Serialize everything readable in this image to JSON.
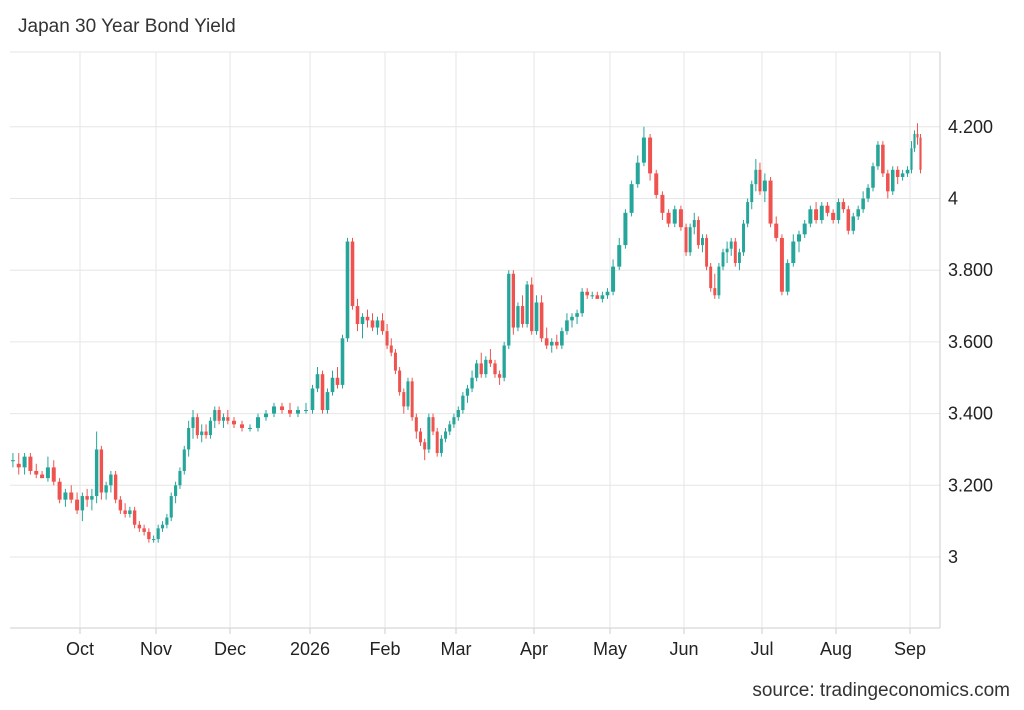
{
  "title": "Japan 30 Year Bond Yield",
  "source": "source: tradingeconomics.com",
  "colors": {
    "up": "#26a69a",
    "down": "#ef5350",
    "grid": "#e6e6e6"
  },
  "chart_data": {
    "type": "candlestick",
    "title": "Japan 30 Year Bond Yield",
    "x_labels": [
      "Oct",
      "Nov",
      "Dec",
      "2026",
      "Feb",
      "Mar",
      "Apr",
      "May",
      "Jun",
      "Jul",
      "Aug",
      "Sep"
    ],
    "y_ticks": [
      "3",
      "3.200",
      "3.400",
      "3.600",
      "3.800",
      "4",
      "4.200"
    ],
    "ylim": [
      2.8,
      4.38
    ],
    "grid": true,
    "legend": "none",
    "note": "Daily candles; each entry is [open, high, low, close] in percent.",
    "segments": [
      {
        "month": "Sep",
        "ohlc": [
          [
            3.27,
            3.29,
            3.25,
            3.27
          ],
          [
            3.26,
            3.29,
            3.23,
            3.25
          ],
          [
            3.25,
            3.29,
            3.23,
            3.28
          ],
          [
            3.28,
            3.29,
            3.23,
            3.24
          ],
          [
            3.24,
            3.26,
            3.22,
            3.23
          ],
          [
            3.23,
            3.24,
            3.22,
            3.22
          ],
          [
            3.22,
            3.28,
            3.21,
            3.25
          ],
          [
            3.25,
            3.27,
            3.2,
            3.21
          ],
          [
            3.21,
            3.22,
            3.15,
            3.16
          ],
          [
            3.16,
            3.19,
            3.14,
            3.18
          ],
          [
            3.18,
            3.2,
            3.15,
            3.16
          ],
          [
            3.16,
            3.18,
            3.12,
            3.13
          ]
        ]
      },
      {
        "month": "Oct",
        "ohlc": [
          [
            3.13,
            3.18,
            3.1,
            3.17
          ],
          [
            3.17,
            3.19,
            3.14,
            3.16
          ],
          [
            3.16,
            3.19,
            3.13,
            3.17
          ],
          [
            3.17,
            3.35,
            3.15,
            3.3
          ],
          [
            3.3,
            3.31,
            3.16,
            3.18
          ],
          [
            3.18,
            3.21,
            3.16,
            3.2
          ],
          [
            3.2,
            3.24,
            3.18,
            3.23
          ],
          [
            3.23,
            3.24,
            3.15,
            3.16
          ],
          [
            3.16,
            3.17,
            3.12,
            3.13
          ],
          [
            3.13,
            3.15,
            3.11,
            3.12
          ],
          [
            3.12,
            3.14,
            3.11,
            3.13
          ],
          [
            3.13,
            3.14,
            3.08,
            3.09
          ],
          [
            3.09,
            3.1,
            3.07,
            3.08
          ],
          [
            3.08,
            3.09,
            3.06,
            3.07
          ],
          [
            3.07,
            3.08,
            3.04,
            3.05
          ],
          [
            3.05,
            3.06,
            3.04,
            3.05
          ]
        ]
      },
      {
        "month": "Nov",
        "ohlc": [
          [
            3.05,
            3.09,
            3.04,
            3.08
          ],
          [
            3.08,
            3.1,
            3.07,
            3.09
          ],
          [
            3.09,
            3.12,
            3.08,
            3.11
          ],
          [
            3.11,
            3.18,
            3.1,
            3.17
          ],
          [
            3.17,
            3.21,
            3.15,
            3.2
          ],
          [
            3.2,
            3.25,
            3.19,
            3.24
          ],
          [
            3.24,
            3.31,
            3.23,
            3.3
          ],
          [
            3.3,
            3.38,
            3.28,
            3.36
          ],
          [
            3.36,
            3.41,
            3.33,
            3.39
          ],
          [
            3.39,
            3.4,
            3.33,
            3.34
          ],
          [
            3.34,
            3.37,
            3.32,
            3.35
          ],
          [
            3.35,
            3.37,
            3.33,
            3.34
          ],
          [
            3.34,
            3.39,
            3.33,
            3.38
          ],
          [
            3.38,
            3.42,
            3.36,
            3.41
          ],
          [
            3.41,
            3.42,
            3.37,
            3.38
          ],
          [
            3.38,
            3.4,
            3.36,
            3.39
          ],
          [
            3.39,
            3.41,
            3.37,
            3.38
          ]
        ]
      },
      {
        "month": "Dec",
        "ohlc": [
          [
            3.38,
            3.39,
            3.36,
            3.37
          ],
          [
            3.37,
            3.38,
            3.35,
            3.36
          ],
          [
            3.36,
            3.37,
            3.35,
            3.36
          ],
          [
            3.36,
            3.4,
            3.35,
            3.39
          ],
          [
            3.39,
            3.41,
            3.38,
            3.4
          ],
          [
            3.4,
            3.43,
            3.39,
            3.42
          ],
          [
            3.42,
            3.43,
            3.4,
            3.41
          ],
          [
            3.41,
            3.43,
            3.39,
            3.4
          ],
          [
            3.4,
            3.42,
            3.39,
            3.41
          ],
          [
            3.41,
            3.43,
            3.4,
            3.41
          ]
        ]
      },
      {
        "month": "2026",
        "ohlc": [
          [
            3.41,
            3.48,
            3.4,
            3.47
          ],
          [
            3.47,
            3.53,
            3.46,
            3.51
          ],
          [
            3.51,
            3.52,
            3.4,
            3.41
          ],
          [
            3.41,
            3.47,
            3.4,
            3.46
          ],
          [
            3.46,
            3.52,
            3.45,
            3.5
          ],
          [
            3.5,
            3.53,
            3.47,
            3.48
          ],
          [
            3.48,
            3.62,
            3.47,
            3.61
          ],
          [
            3.61,
            3.89,
            3.6,
            3.88
          ],
          [
            3.88,
            3.89,
            3.69,
            3.7
          ],
          [
            3.7,
            3.72,
            3.63,
            3.65
          ],
          [
            3.65,
            3.68,
            3.61,
            3.67
          ],
          [
            3.67,
            3.69,
            3.64,
            3.66
          ],
          [
            3.66,
            3.68,
            3.63,
            3.64
          ],
          [
            3.64,
            3.67,
            3.62,
            3.66
          ],
          [
            3.66,
            3.68,
            3.62,
            3.63
          ]
        ]
      },
      {
        "month": "Feb",
        "ohlc": [
          [
            3.63,
            3.65,
            3.58,
            3.59
          ],
          [
            3.59,
            3.61,
            3.56,
            3.57
          ],
          [
            3.57,
            3.58,
            3.51,
            3.52
          ],
          [
            3.52,
            3.53,
            3.45,
            3.46
          ],
          [
            3.46,
            3.47,
            3.4,
            3.42
          ],
          [
            3.42,
            3.5,
            3.41,
            3.49
          ],
          [
            3.49,
            3.5,
            3.38,
            3.39
          ],
          [
            3.39,
            3.4,
            3.33,
            3.35
          ],
          [
            3.35,
            3.36,
            3.31,
            3.32
          ],
          [
            3.32,
            3.33,
            3.27,
            3.3
          ],
          [
            3.3,
            3.4,
            3.29,
            3.39
          ],
          [
            3.39,
            3.4,
            3.34,
            3.35
          ],
          [
            3.35,
            3.36,
            3.28,
            3.29
          ],
          [
            3.29,
            3.34,
            3.28,
            3.33
          ],
          [
            3.33,
            3.36,
            3.32,
            3.35
          ],
          [
            3.35,
            3.38,
            3.34,
            3.37
          ],
          [
            3.37,
            3.4,
            3.36,
            3.39
          ]
        ]
      },
      {
        "month": "Mar",
        "ohlc": [
          [
            3.39,
            3.42,
            3.38,
            3.41
          ],
          [
            3.41,
            3.46,
            3.4,
            3.45
          ],
          [
            3.45,
            3.48,
            3.43,
            3.47
          ],
          [
            3.47,
            3.52,
            3.46,
            3.5
          ],
          [
            3.5,
            3.55,
            3.49,
            3.54
          ],
          [
            3.54,
            3.57,
            3.5,
            3.51
          ],
          [
            3.51,
            3.56,
            3.5,
            3.55
          ],
          [
            3.55,
            3.58,
            3.53,
            3.54
          ],
          [
            3.54,
            3.55,
            3.5,
            3.51
          ],
          [
            3.51,
            3.52,
            3.48,
            3.5
          ],
          [
            3.5,
            3.6,
            3.49,
            3.59
          ],
          [
            3.59,
            3.8,
            3.58,
            3.79
          ],
          [
            3.79,
            3.8,
            3.62,
            3.64
          ],
          [
            3.64,
            3.71,
            3.63,
            3.7
          ],
          [
            3.7,
            3.73,
            3.64,
            3.65
          ],
          [
            3.65,
            3.77,
            3.64,
            3.76
          ],
          [
            3.76,
            3.78,
            3.62,
            3.63
          ]
        ]
      },
      {
        "month": "Apr",
        "ohlc": [
          [
            3.63,
            3.73,
            3.62,
            3.71
          ],
          [
            3.71,
            3.73,
            3.6,
            3.61
          ],
          [
            3.61,
            3.64,
            3.58,
            3.59
          ],
          [
            3.59,
            3.61,
            3.57,
            3.6
          ],
          [
            3.6,
            3.62,
            3.58,
            3.59
          ],
          [
            3.59,
            3.64,
            3.58,
            3.63
          ],
          [
            3.63,
            3.68,
            3.62,
            3.66
          ],
          [
            3.66,
            3.68,
            3.64,
            3.67
          ],
          [
            3.67,
            3.69,
            3.65,
            3.68
          ],
          [
            3.68,
            3.75,
            3.67,
            3.74
          ],
          [
            3.74,
            3.75,
            3.72,
            3.73
          ],
          [
            3.73,
            3.74,
            3.72,
            3.73
          ],
          [
            3.73,
            3.74,
            3.72,
            3.72
          ],
          [
            3.72,
            3.74,
            3.71,
            3.73
          ],
          [
            3.73,
            3.75,
            3.72,
            3.74
          ]
        ]
      },
      {
        "month": "May",
        "ohlc": [
          [
            3.74,
            3.83,
            3.73,
            3.81
          ],
          [
            3.81,
            3.89,
            3.8,
            3.87
          ],
          [
            3.87,
            3.97,
            3.86,
            3.96
          ],
          [
            3.96,
            4.05,
            3.95,
            4.04
          ],
          [
            4.04,
            4.12,
            4.03,
            4.1
          ],
          [
            4.1,
            4.2,
            4.09,
            4.17
          ],
          [
            4.17,
            4.18,
            4.05,
            4.07
          ],
          [
            4.07,
            4.08,
            4.0,
            4.01
          ],
          [
            4.01,
            4.02,
            3.94,
            3.96
          ],
          [
            3.96,
            3.97,
            3.92,
            3.93
          ],
          [
            3.93,
            3.98,
            3.92,
            3.97
          ],
          [
            3.97,
            3.98,
            3.91,
            3.92
          ]
        ]
      },
      {
        "month": "Jun",
        "ohlc": [
          [
            3.92,
            3.93,
            3.84,
            3.85
          ],
          [
            3.85,
            3.93,
            3.84,
            3.92
          ],
          [
            3.92,
            3.96,
            3.9,
            3.94
          ],
          [
            3.94,
            3.95,
            3.86,
            3.87
          ],
          [
            3.87,
            3.9,
            3.85,
            3.89
          ],
          [
            3.89,
            3.9,
            3.8,
            3.81
          ],
          [
            3.81,
            3.82,
            3.74,
            3.75
          ],
          [
            3.75,
            3.79,
            3.72,
            3.73
          ],
          [
            3.73,
            3.82,
            3.72,
            3.81
          ],
          [
            3.81,
            3.86,
            3.8,
            3.85
          ],
          [
            3.85,
            3.88,
            3.82,
            3.86
          ],
          [
            3.86,
            3.89,
            3.84,
            3.88
          ],
          [
            3.88,
            3.89,
            3.81,
            3.82
          ],
          [
            3.82,
            3.86,
            3.8,
            3.85
          ],
          [
            3.85,
            3.94,
            3.84,
            3.93
          ],
          [
            3.93,
            4.0,
            3.92,
            3.99
          ],
          [
            3.99,
            4.05,
            3.97,
            4.04
          ],
          [
            4.04,
            4.11,
            4.02,
            4.08
          ],
          [
            4.08,
            4.1,
            4.01,
            4.02
          ]
        ]
      },
      {
        "month": "Jul",
        "ohlc": [
          [
            4.02,
            4.07,
            3.99,
            4.05
          ],
          [
            4.05,
            4.06,
            3.92,
            3.93
          ],
          [
            3.93,
            3.95,
            3.88,
            3.89
          ],
          [
            3.89,
            3.9,
            3.73,
            3.74
          ],
          [
            3.74,
            3.83,
            3.73,
            3.82
          ],
          [
            3.82,
            3.9,
            3.81,
            3.88
          ],
          [
            3.88,
            3.91,
            3.85,
            3.9
          ],
          [
            3.9,
            3.94,
            3.89,
            3.93
          ],
          [
            3.93,
            3.98,
            3.92,
            3.97
          ],
          [
            3.97,
            3.99,
            3.93,
            3.94
          ],
          [
            3.94,
            3.99,
            3.93,
            3.98
          ],
          [
            3.98,
            3.99,
            3.95,
            3.96
          ],
          [
            3.96,
            3.97,
            3.93,
            3.94
          ]
        ]
      },
      {
        "month": "Aug",
        "ohlc": [
          [
            3.94,
            4.0,
            3.93,
            3.99
          ],
          [
            3.99,
            4.0,
            3.96,
            3.97
          ],
          [
            3.97,
            3.98,
            3.9,
            3.91
          ],
          [
            3.91,
            3.96,
            3.9,
            3.95
          ],
          [
            3.95,
            3.98,
            3.94,
            3.97
          ],
          [
            3.97,
            4.02,
            3.96,
            4.0
          ],
          [
            4.0,
            4.04,
            3.99,
            4.03
          ],
          [
            4.03,
            4.1,
            4.02,
            4.09
          ],
          [
            4.09,
            4.16,
            4.08,
            4.15
          ],
          [
            4.15,
            4.16,
            4.06,
            4.07
          ],
          [
            4.07,
            4.08,
            4.0,
            4.02
          ],
          [
            4.02,
            4.09,
            4.01,
            4.08
          ],
          [
            4.08,
            4.09,
            4.04,
            4.06
          ],
          [
            4.06,
            4.08,
            4.05,
            4.07
          ],
          [
            4.07,
            4.09,
            4.06,
            4.08
          ]
        ]
      },
      {
        "month": "Sep",
        "ohlc": [
          [
            4.08,
            4.16,
            4.07,
            4.14
          ],
          [
            4.14,
            4.19,
            4.13,
            4.18
          ],
          [
            4.18,
            4.21,
            4.15,
            4.17
          ],
          [
            4.17,
            4.18,
            4.07,
            4.08
          ]
        ]
      }
    ]
  }
}
